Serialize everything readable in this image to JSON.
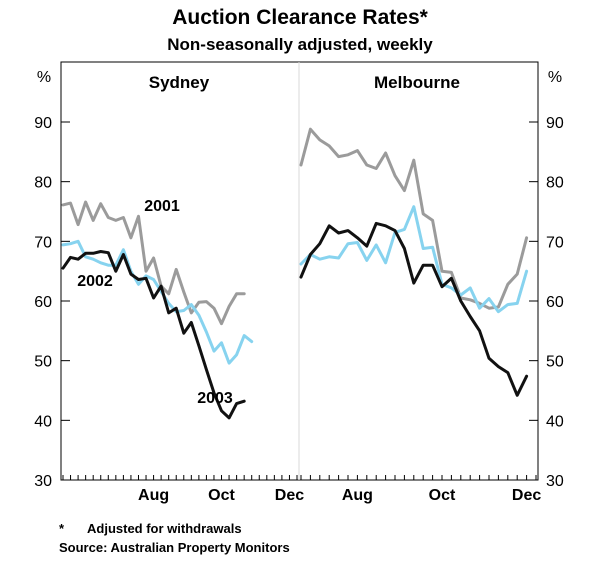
{
  "title": "Auction Clearance Rates*",
  "subtitle": "Non-seasonally adjusted, weekly",
  "footnote_marker": "*",
  "footnote": "Adjusted for withdrawals",
  "source": "Source: Australian Property Monitors",
  "colors": {
    "s2001": "#9b9b9b",
    "s2002": "#87d3ef",
    "s2003": "#111111",
    "axis": "#000000",
    "divider": "#d9d9d9"
  },
  "chart_data": [
    {
      "type": "line",
      "panel": "Sydney",
      "title": "Sydney",
      "ylabel": "%",
      "ylim": [
        30,
        90
      ],
      "yticks": [
        30,
        40,
        50,
        60,
        70,
        80,
        90
      ],
      "xticks": [
        {
          "label": "Aug",
          "week": 12
        },
        {
          "label": "Oct",
          "week": 21
        },
        {
          "label": "Dec",
          "week": 30
        }
      ],
      "x_weeks": 32,
      "grid": false,
      "series": [
        {
          "name": "2001",
          "key": "s2001",
          "values": [
            76.1,
            76.4,
            72.8,
            76.6,
            73.5,
            76.3,
            74.0,
            73.5,
            74.0,
            70.6,
            74.2,
            65.0,
            67.2,
            62.5,
            61.2,
            65.3,
            61.5,
            58.0,
            59.8,
            59.9,
            58.8,
            56.2,
            59.1,
            61.2,
            61.2
          ]
        },
        {
          "name": "2002",
          "key": "s2002",
          "values": [
            69.4,
            69.6,
            70.0,
            67.4,
            67.0,
            66.4,
            66.0,
            66.0,
            68.6,
            65.0,
            62.8,
            64.2,
            63.6,
            61.6,
            59.6,
            58.2,
            58.4,
            59.4,
            57.6,
            54.8,
            51.6,
            53.0,
            49.6,
            51.0,
            54.2,
            53.2
          ]
        },
        {
          "name": "2003",
          "key": "s2003",
          "values": [
            65.5,
            67.3,
            67.0,
            68.0,
            68.0,
            68.3,
            68.1,
            65.0,
            67.8,
            64.5,
            63.6,
            63.8,
            60.5,
            62.5,
            58.0,
            58.8,
            54.6,
            56.4,
            52.5,
            48.5,
            44.6,
            41.6,
            40.4,
            42.8,
            43.2
          ]
        }
      ],
      "annotations": [
        {
          "text": "2001",
          "series": "2001"
        },
        {
          "text": "2002",
          "series": "2002"
        },
        {
          "text": "2003",
          "series": "2003"
        }
      ]
    },
    {
      "type": "line",
      "panel": "Melbourne",
      "title": "Melbourne",
      "ylabel": "%",
      "ylim": [
        30,
        90
      ],
      "yticks": [
        30,
        40,
        50,
        60,
        70,
        80,
        90
      ],
      "xticks": [
        {
          "label": "Aug",
          "week": 6
        },
        {
          "label": "Oct",
          "week": 15
        },
        {
          "label": "Dec",
          "week": 24
        }
      ],
      "x_weeks": 26,
      "grid": false,
      "series": [
        {
          "name": "2001",
          "key": "s2001",
          "values": [
            82.8,
            88.8,
            87.0,
            86.0,
            84.2,
            84.5,
            85.2,
            82.8,
            82.2,
            84.8,
            81.0,
            78.5,
            83.6,
            74.6,
            73.5,
            65.0,
            64.8,
            60.5,
            60.2,
            59.6,
            58.8,
            59.0,
            62.8,
            64.5,
            70.6
          ]
        },
        {
          "name": "2002",
          "key": "s2002",
          "values": [
            66.2,
            67.8,
            67.0,
            67.4,
            67.2,
            69.6,
            69.8,
            66.8,
            69.4,
            66.4,
            71.5,
            72.0,
            75.8,
            68.8,
            69.0,
            62.8,
            62.2,
            61.0,
            62.2,
            58.8,
            60.4,
            58.2,
            59.4,
            59.6,
            65.0
          ]
        },
        {
          "name": "2003",
          "key": "s2003",
          "values": [
            64.0,
            67.8,
            69.6,
            72.6,
            71.4,
            71.8,
            70.6,
            69.2,
            73.0,
            72.6,
            71.8,
            68.8,
            63.0,
            66.0,
            66.0,
            62.4,
            63.8,
            60.0,
            57.4,
            55.0,
            50.4,
            49.0,
            48.0,
            44.2,
            47.4
          ]
        }
      ],
      "annotations": []
    }
  ]
}
